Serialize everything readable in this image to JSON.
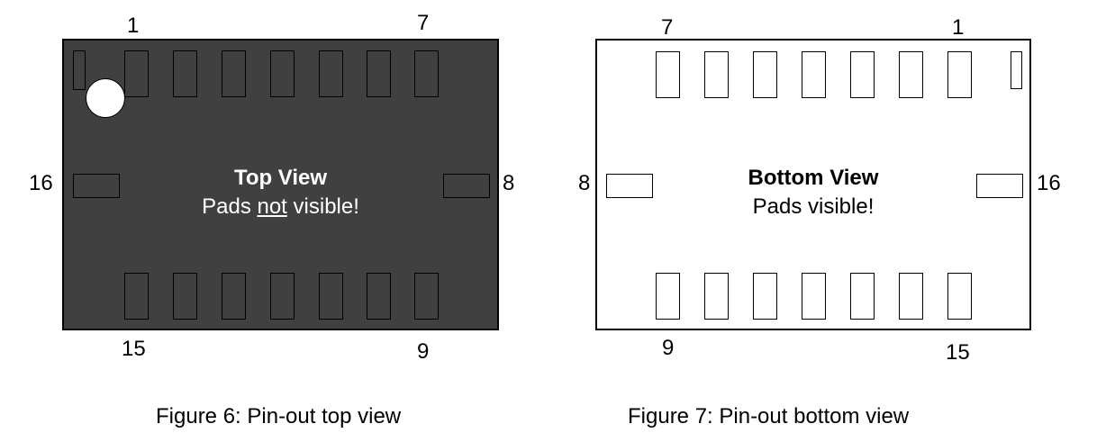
{
  "top_view": {
    "title": "Top View",
    "subtitle_before": "Pads ",
    "subtitle_emph": "not",
    "subtitle_after": " visible!",
    "pins": {
      "top_left": "1",
      "top_right": "7",
      "left": "16",
      "right": "8",
      "bottom_left": "15",
      "bottom_right": "9"
    }
  },
  "bottom_view": {
    "title": "Bottom View",
    "subtitle": "Pads visible!",
    "pins": {
      "top_left": "7",
      "top_right": "1",
      "left": "8",
      "right": "16",
      "bottom_left": "9",
      "bottom_right": "15"
    }
  },
  "captions": {
    "figure6": "Figure 6: Pin-out top view",
    "figure7": "Figure 7: Pin-out bottom view"
  },
  "colors": {
    "top_body": "#404040",
    "bottom_body": "#ffffff",
    "outline": "#000000"
  }
}
